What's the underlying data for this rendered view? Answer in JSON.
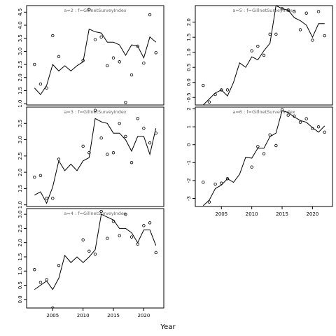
{
  "figure": {
    "xlabel": "Year"
  },
  "chart_data": [
    {
      "type": "line",
      "title": "a=2 : f=GillnetSurveyIndex",
      "xlim": [
        2000.7,
        2023.3
      ],
      "ylim": [
        0.95,
        4.75
      ],
      "yticks": [
        1.0,
        1.5,
        2.0,
        2.5,
        3.0,
        3.5,
        4.0,
        4.5
      ],
      "ytick_labels": [
        "1.0",
        "1.5",
        "2.0",
        "2.5",
        "3.0",
        "3.5",
        "4.0",
        "4.5"
      ],
      "xticks": [
        2005,
        2010,
        2015,
        2020
      ],
      "show_xtick_labels": false,
      "series": [
        {
          "kind": "points",
          "x": [
            2002,
            2003,
            2004,
            2005,
            2006,
            2010,
            2011,
            2012,
            2013,
            2014,
            2015,
            2016,
            2017,
            2018,
            2019,
            2020,
            2021,
            2022
          ],
          "y": [
            2.5,
            1.75,
            1.6,
            3.6,
            2.8,
            2.65,
            4.6,
            3.45,
            3.55,
            2.45,
            2.75,
            2.6,
            1.05,
            2.1,
            3.2,
            2.55,
            4.4,
            2.95
          ]
        },
        {
          "kind": "line",
          "x": [
            2002,
            2003,
            2004,
            2005,
            2006,
            2007,
            2008,
            2009,
            2010,
            2011,
            2012,
            2013,
            2014,
            2015,
            2016,
            2017,
            2018,
            2019,
            2020,
            2021,
            2022
          ],
          "y": [
            1.6,
            1.35,
            1.7,
            2.5,
            2.25,
            2.45,
            2.25,
            2.45,
            2.6,
            3.85,
            3.75,
            3.7,
            3.35,
            3.35,
            3.25,
            2.85,
            3.25,
            3.2,
            2.75,
            3.55,
            3.35
          ]
        }
      ]
    },
    {
      "type": "line",
      "title": "a=5 : f=GillnetSurveyIndex",
      "xlim": [
        2000.7,
        2023.3
      ],
      "ylim": [
        -0.75,
        2.55
      ],
      "yticks": [
        -0.5,
        0.0,
        0.5,
        1.0,
        1.5,
        2.0
      ],
      "ytick_labels": [
        "-0.5",
        "0.0",
        "0.5",
        "1.0",
        "1.5",
        "2.0"
      ],
      "xticks": [
        2005,
        2010,
        2015,
        2020
      ],
      "show_xtick_labels": false,
      "series": [
        {
          "kind": "points",
          "x": [
            2002,
            2003,
            2004,
            2005,
            2006,
            2010,
            2011,
            2012,
            2013,
            2014,
            2015,
            2016,
            2017,
            2018,
            2019,
            2020,
            2021,
            2022
          ],
          "y": [
            -0.1,
            -0.65,
            -0.4,
            -0.25,
            -0.25,
            1.05,
            1.2,
            0.9,
            1.6,
            1.6,
            2.45,
            2.4,
            2.35,
            1.75,
            2.3,
            1.4,
            2.35,
            1.55
          ]
        },
        {
          "kind": "line",
          "x": [
            2002,
            2003,
            2004,
            2005,
            2006,
            2007,
            2008,
            2009,
            2010,
            2011,
            2012,
            2013,
            2014,
            2015,
            2016,
            2017,
            2018,
            2019,
            2020,
            2021,
            2022
          ],
          "y": [
            -0.75,
            -0.55,
            -0.35,
            -0.25,
            -0.45,
            0.0,
            0.65,
            0.5,
            0.85,
            0.75,
            1.05,
            1.3,
            2.55,
            2.45,
            2.4,
            2.15,
            2.05,
            1.9,
            1.5,
            1.95,
            1.95
          ]
        }
      ]
    },
    {
      "type": "line",
      "title": "a=3 : f=GillnetSurveyIndex",
      "xlim": [
        2000.7,
        2023.3
      ],
      "ylim": [
        0.95,
        4.0
      ],
      "yticks": [
        1.0,
        1.5,
        2.0,
        2.5,
        3.0,
        3.5
      ],
      "ytick_labels": [
        "1.0",
        "1.5",
        "2.0",
        "2.5",
        "3.0",
        "3.5"
      ],
      "xticks": [
        2005,
        2010,
        2015,
        2020
      ],
      "show_xtick_labels": false,
      "series": [
        {
          "kind": "points",
          "x": [
            2002,
            2003,
            2004,
            2005,
            2006,
            2010,
            2011,
            2012,
            2013,
            2014,
            2015,
            2016,
            2017,
            2018,
            2019,
            2020,
            2021,
            2022
          ],
          "y": [
            1.85,
            1.9,
            1.2,
            1.2,
            2.4,
            2.8,
            2.6,
            3.9,
            3.05,
            2.55,
            2.6,
            3.5,
            3.1,
            2.3,
            3.65,
            3.35,
            2.9,
            3.2
          ]
        },
        {
          "kind": "line",
          "x": [
            2002,
            2003,
            2004,
            2005,
            2006,
            2007,
            2008,
            2009,
            2010,
            2011,
            2012,
            2013,
            2014,
            2015,
            2016,
            2017,
            2018,
            2019,
            2020,
            2021,
            2022
          ],
          "y": [
            1.3,
            1.4,
            1.05,
            1.55,
            2.35,
            2.05,
            2.25,
            2.05,
            2.35,
            2.45,
            3.65,
            3.55,
            3.5,
            3.2,
            3.2,
            3.0,
            2.65,
            3.1,
            3.1,
            2.55,
            3.35
          ]
        }
      ]
    },
    {
      "type": "line",
      "title": "a=6 : f=GillnetSurveyIndex",
      "xlim": [
        2000.7,
        2023.3
      ],
      "ylim": [
        -3.45,
        2.1
      ],
      "yticks": [
        -3,
        -2,
        -1,
        0,
        1,
        2
      ],
      "ytick_labels": [
        "-3",
        "-2",
        "-1",
        "0",
        "1",
        "2"
      ],
      "xticks": [
        2005,
        2010,
        2015,
        2020
      ],
      "show_xtick_labels": true,
      "xtick_labels": [
        "2005",
        "2010",
        "2015",
        "2020"
      ],
      "series": [
        {
          "kind": "points",
          "x": [
            2002,
            2003,
            2004,
            2005,
            2006,
            2010,
            2011,
            2012,
            2013,
            2014,
            2015,
            2016,
            2017,
            2018,
            2019,
            2020,
            2021,
            2022
          ],
          "y": [
            -2.1,
            -3.2,
            -2.2,
            -2.15,
            -1.9,
            -1.25,
            -0.1,
            -0.5,
            0.55,
            -0.05,
            1.95,
            1.65,
            1.6,
            1.25,
            1.45,
            0.9,
            1.0,
            0.7
          ]
        },
        {
          "kind": "line",
          "x": [
            2002,
            2003,
            2004,
            2005,
            2006,
            2007,
            2008,
            2009,
            2010,
            2011,
            2012,
            2013,
            2014,
            2015,
            2016,
            2017,
            2018,
            2019,
            2020,
            2021,
            2022
          ],
          "y": [
            -3.4,
            -3.1,
            -2.45,
            -2.25,
            -1.9,
            -2.1,
            -1.65,
            -0.7,
            -0.75,
            -0.2,
            -0.2,
            0.45,
            0.65,
            1.9,
            1.8,
            1.55,
            1.35,
            1.25,
            0.95,
            0.7,
            1.05
          ]
        }
      ]
    },
    {
      "type": "line",
      "title": "a=4 : f=GillnetSurveyIndex",
      "xlim": [
        2000.7,
        2023.3
      ],
      "ylim": [
        -0.3,
        3.2
      ],
      "yticks": [
        0.0,
        0.5,
        1.0,
        1.5,
        2.0,
        2.5,
        3.0
      ],
      "ytick_labels": [
        "0.0",
        "0.5",
        "1.0",
        "1.5",
        "2.0",
        "2.5",
        "3.0"
      ],
      "xticks": [
        2005,
        2010,
        2015,
        2020
      ],
      "show_xtick_labels": true,
      "xtick_labels": [
        "2005",
        "2010",
        "2015",
        "2020"
      ],
      "series": [
        {
          "kind": "points",
          "x": [
            2002,
            2003,
            2004,
            2005,
            2006,
            2010,
            2011,
            2012,
            2013,
            2014,
            2015,
            2016,
            2017,
            2018,
            2019,
            2020,
            2021,
            2022
          ],
          "y": [
            1.05,
            0.6,
            0.7,
            -0.3,
            1.2,
            2.1,
            1.7,
            1.6,
            3.1,
            2.15,
            2.75,
            2.25,
            3.0,
            2.2,
            1.95,
            2.6,
            2.7,
            1.65
          ]
        },
        {
          "kind": "line",
          "x": [
            2002,
            2003,
            2004,
            2005,
            2006,
            2007,
            2008,
            2009,
            2010,
            2011,
            2012,
            2013,
            2014,
            2015,
            2016,
            2017,
            2018,
            2019,
            2020,
            2021,
            2022
          ],
          "y": [
            0.35,
            0.5,
            0.65,
            0.35,
            0.75,
            1.55,
            1.3,
            1.5,
            1.3,
            1.5,
            1.75,
            3.0,
            2.9,
            2.8,
            2.5,
            2.5,
            2.35,
            2.0,
            2.45,
            2.45,
            1.9
          ]
        }
      ]
    }
  ]
}
